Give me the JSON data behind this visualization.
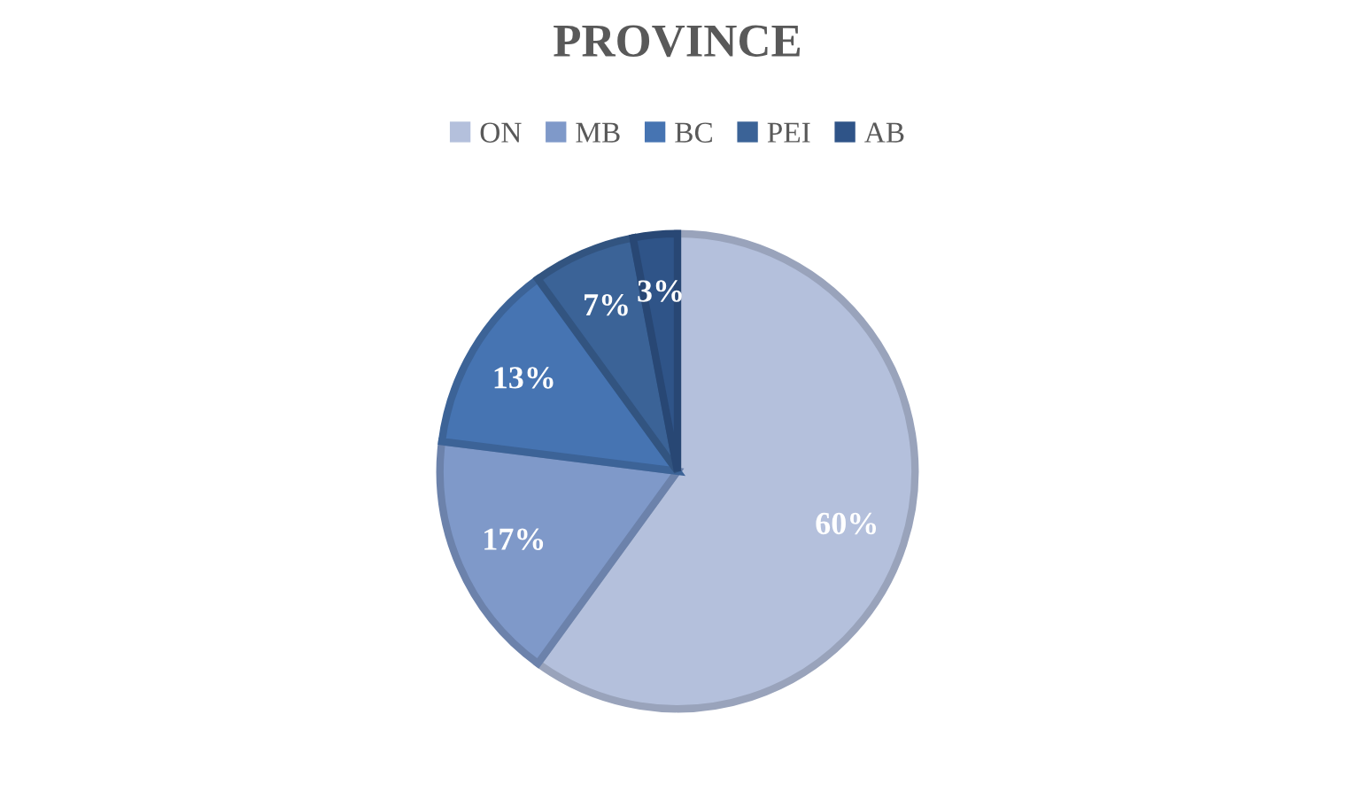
{
  "chart_data": {
    "type": "pie",
    "title": "PROVINCE",
    "categories": [
      "ON",
      "MB",
      "BC",
      "PEI",
      "AB"
    ],
    "values": [
      60,
      17,
      13,
      7,
      3
    ],
    "colors": [
      "#b4c0dc",
      "#7f99c9",
      "#4674b2",
      "#3b6397",
      "#2f5488"
    ],
    "value_labels": [
      "60%",
      "17%",
      "13%",
      "7%",
      "3%"
    ],
    "legend": "top"
  }
}
